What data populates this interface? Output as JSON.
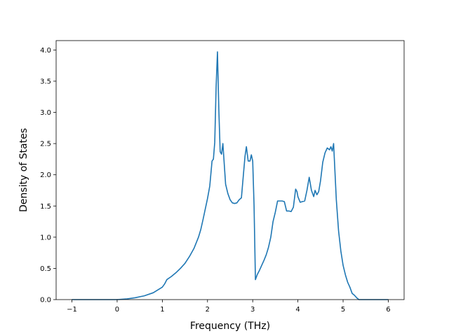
{
  "chart_data": {
    "type": "line",
    "title": "",
    "xlabel": "Frequency (THz)",
    "ylabel": "Density of States",
    "xlim": [
      -1.35,
      6.35
    ],
    "ylim": [
      0.0,
      4.15
    ],
    "xticks": [
      -1,
      0,
      1,
      2,
      3,
      4,
      5,
      6
    ],
    "xtick_labels": [
      "−1",
      "0",
      "1",
      "2",
      "3",
      "4",
      "5",
      "6"
    ],
    "yticks": [
      0.0,
      0.5,
      1.0,
      1.5,
      2.0,
      2.5,
      3.0,
      3.5,
      4.0
    ],
    "ytick_labels": [
      "0.0",
      "0.5",
      "1.0",
      "1.5",
      "2.0",
      "2.5",
      "3.0",
      "3.5",
      "4.0"
    ],
    "grid": false,
    "colors": {
      "line": "#1f77b4"
    },
    "series": [
      {
        "x": [
          -1.0,
          -0.5,
          0.0,
          0.2,
          0.4,
          0.6,
          0.8,
          1.0,
          1.05,
          1.1,
          1.2,
          1.3,
          1.4,
          1.5,
          1.6,
          1.7,
          1.8,
          1.85,
          1.9,
          1.95,
          2.0,
          2.05,
          2.1,
          2.13,
          2.16,
          2.19,
          2.22,
          2.25,
          2.28,
          2.31,
          2.34,
          2.4,
          2.45,
          2.5,
          2.55,
          2.6,
          2.65,
          2.7,
          2.75,
          2.8,
          2.83,
          2.86,
          2.9,
          2.94,
          2.97,
          3.0,
          3.03,
          3.06,
          3.1,
          3.15,
          3.2,
          3.25,
          3.3,
          3.35,
          3.4,
          3.45,
          3.5,
          3.55,
          3.6,
          3.65,
          3.7,
          3.75,
          3.8,
          3.85,
          3.9,
          3.95,
          3.98,
          4.0,
          4.05,
          4.1,
          4.15,
          4.2,
          4.25,
          4.3,
          4.35,
          4.38,
          4.42,
          4.46,
          4.5,
          4.55,
          4.6,
          4.65,
          4.7,
          4.73,
          4.76,
          4.79,
          4.82,
          4.85,
          4.9,
          4.95,
          5.0,
          5.05,
          5.1,
          5.15,
          5.2,
          5.25,
          5.3,
          5.35,
          5.4,
          5.45,
          5.5,
          6.0
        ],
        "y": [
          0.0,
          0.0,
          0.0,
          0.01,
          0.03,
          0.06,
          0.11,
          0.2,
          0.25,
          0.32,
          0.37,
          0.43,
          0.5,
          0.58,
          0.69,
          0.82,
          1.0,
          1.12,
          1.28,
          1.45,
          1.62,
          1.82,
          2.22,
          2.25,
          2.52,
          3.4,
          3.97,
          3.05,
          2.37,
          2.33,
          2.5,
          1.85,
          1.7,
          1.6,
          1.55,
          1.54,
          1.55,
          1.6,
          1.63,
          2.05,
          2.3,
          2.45,
          2.22,
          2.22,
          2.32,
          2.22,
          1.5,
          0.32,
          0.4,
          0.47,
          0.55,
          0.63,
          0.72,
          0.84,
          1.0,
          1.25,
          1.4,
          1.58,
          1.58,
          1.58,
          1.57,
          1.42,
          1.42,
          1.41,
          1.48,
          1.77,
          1.73,
          1.65,
          1.56,
          1.57,
          1.58,
          1.75,
          1.96,
          1.75,
          1.65,
          1.75,
          1.68,
          1.73,
          1.9,
          2.2,
          2.35,
          2.43,
          2.4,
          2.45,
          2.38,
          2.5,
          2.05,
          1.6,
          1.1,
          0.78,
          0.55,
          0.4,
          0.28,
          0.2,
          0.1,
          0.07,
          0.03,
          0.0,
          0.0,
          0.0,
          0.0,
          0.0
        ]
      }
    ]
  }
}
